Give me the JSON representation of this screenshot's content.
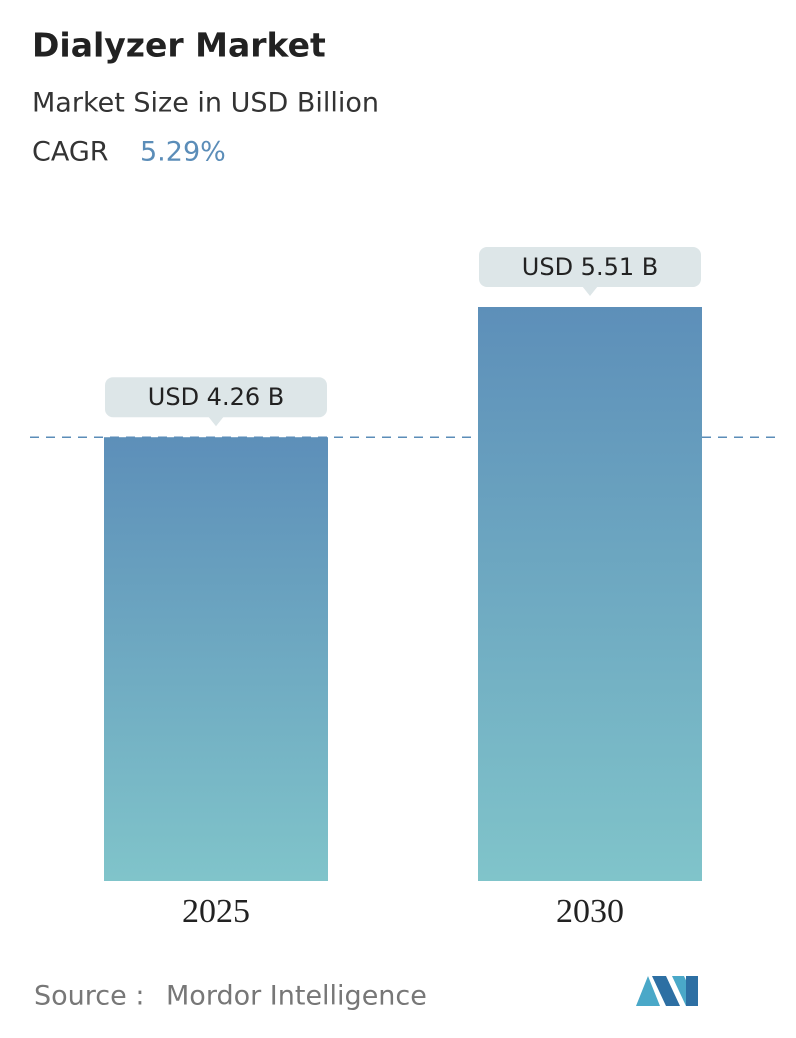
{
  "chart_data": {
    "type": "bar",
    "title": "Dialyzer Market",
    "subtitle": "Market Size in USD Billion",
    "cagr_label": "CAGR",
    "cagr_value": "5.29%",
    "categories": [
      "2025",
      "2030"
    ],
    "values": [
      4.26,
      5.51
    ],
    "value_labels": [
      "USD 4.26 B",
      "USD 5.51 B"
    ],
    "source_label": "Source :",
    "source": "Mordor Intelligence"
  }
}
